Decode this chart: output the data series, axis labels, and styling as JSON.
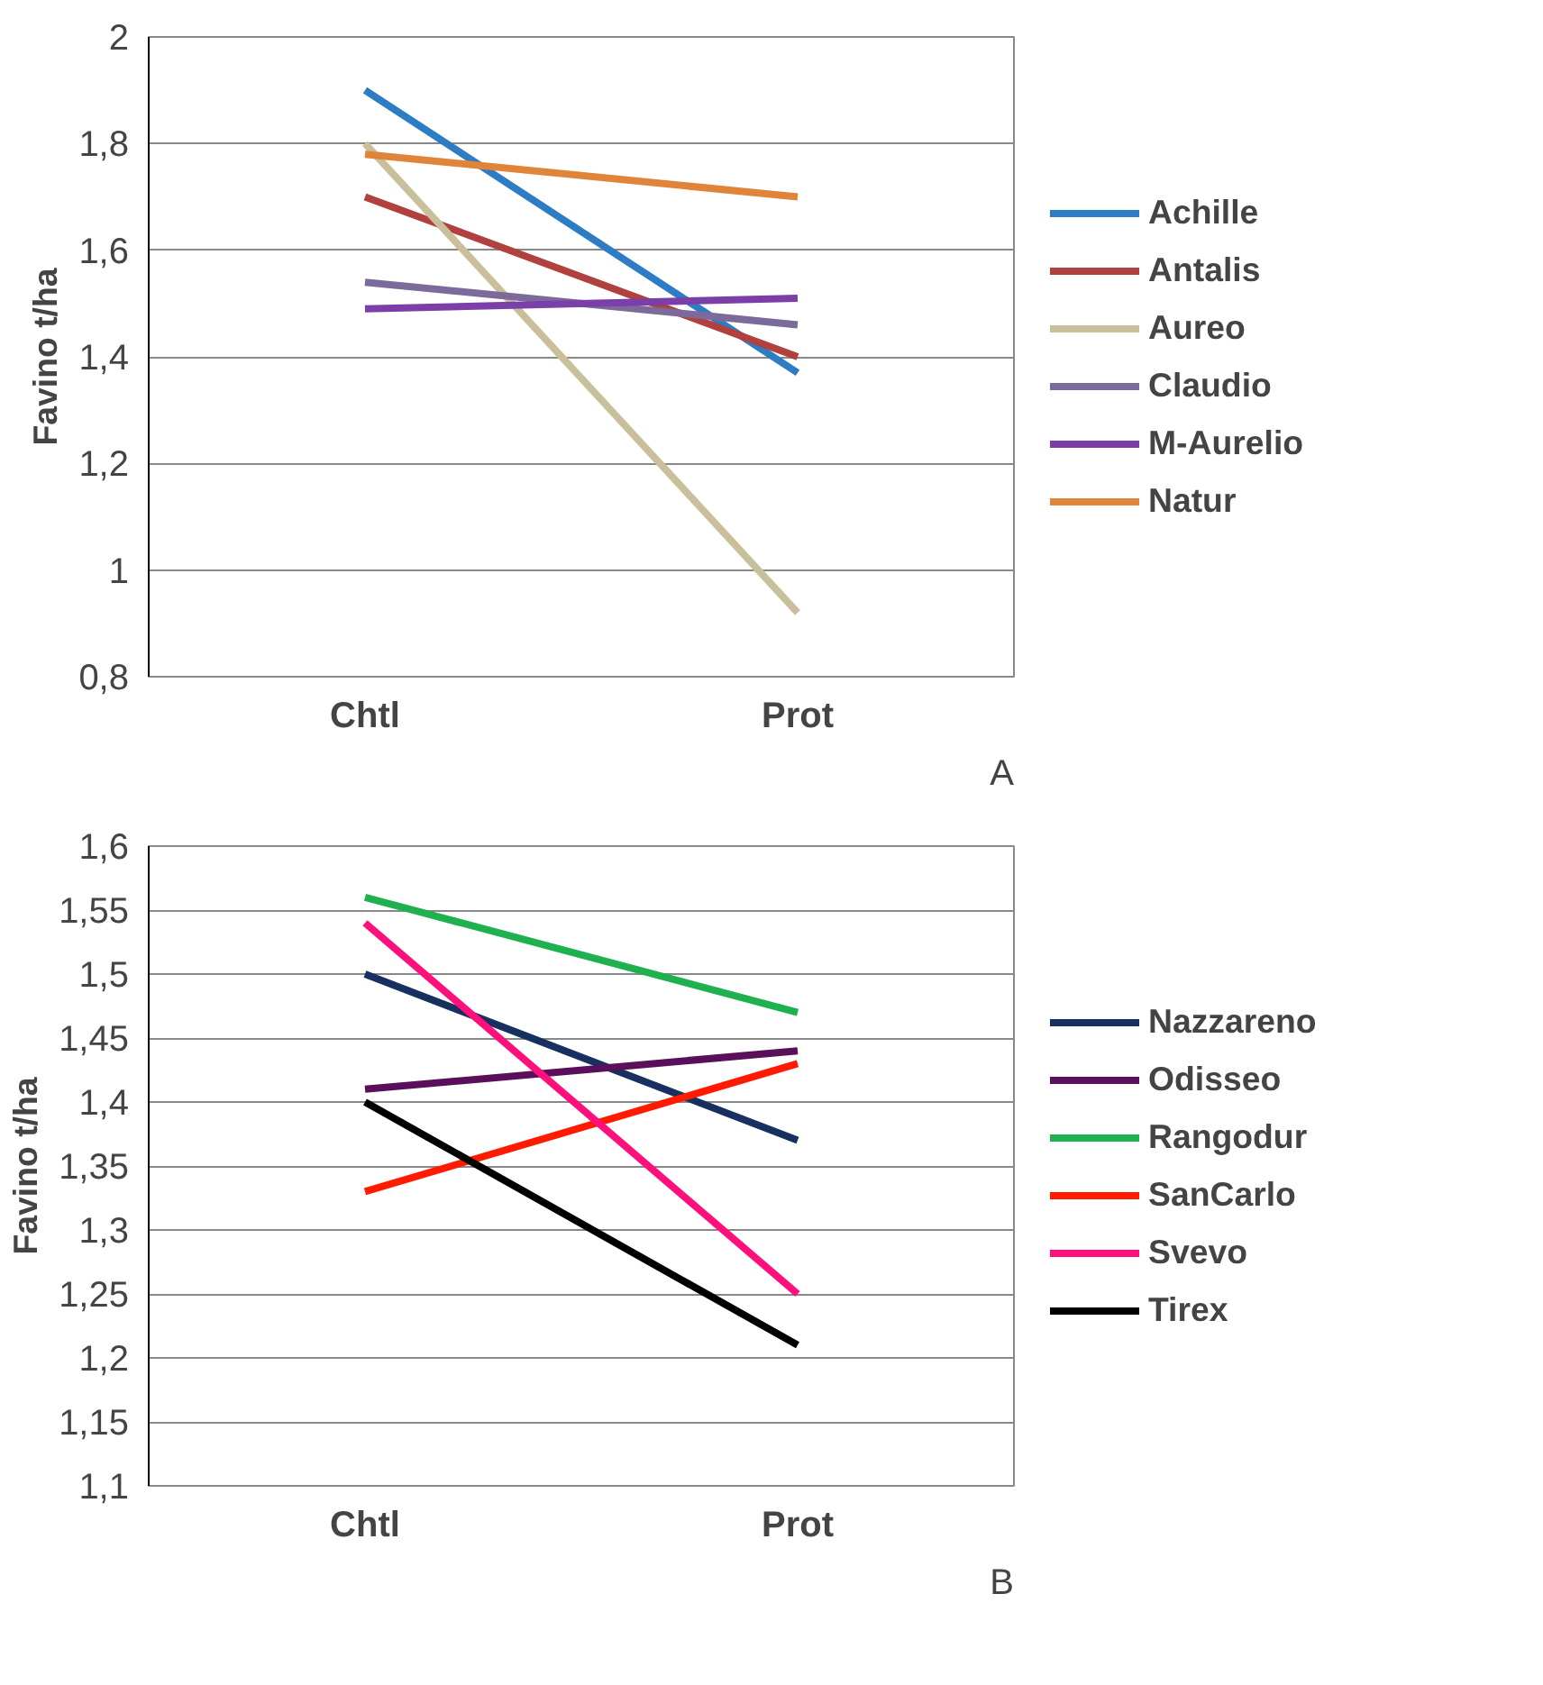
{
  "chart_data": [
    {
      "type": "line",
      "ylabel": "Favino t/ha",
      "categories": [
        "Chtl",
        "Prot"
      ],
      "ylim": [
        0.8,
        2
      ],
      "yticks": [
        {
          "value": 0.8,
          "label": "0,8"
        },
        1,
        {
          "value": 1.2,
          "label": "1,2"
        },
        {
          "value": 1.4,
          "label": "1,4"
        },
        {
          "value": 1.6,
          "label": "1,6"
        },
        {
          "value": 1.8,
          "label": "1,8"
        },
        2
      ],
      "grid": "y",
      "legend": "right",
      "marker": "none",
      "line_style": "solid",
      "annotations": [
        "A"
      ],
      "series": [
        {
          "name": "Achille",
          "color": "#2e7cc4",
          "values": [
            1.9,
            1.37
          ]
        },
        {
          "name": "Antalis",
          "color": "#b0413e",
          "values": [
            1.7,
            1.4
          ]
        },
        {
          "name": "Aureo",
          "color": "#c9c09b",
          "values": [
            1.8,
            0.92
          ]
        },
        {
          "name": "Claudio",
          "color": "#7b6a9a",
          "values": [
            1.54,
            1.46
          ]
        },
        {
          "name": "M-Aurelio",
          "color": "#7a3fa8",
          "values": [
            1.49,
            1.51
          ]
        },
        {
          "name": "Natur",
          "color": "#e0843a",
          "values": [
            1.78,
            1.7
          ]
        }
      ]
    },
    {
      "type": "line",
      "ylabel": "Favino t/ha",
      "categories": [
        "Chtl",
        "Prot"
      ],
      "ylim": [
        1.1,
        1.6
      ],
      "yticks": [
        {
          "value": 1.1,
          "label": "1,1"
        },
        {
          "value": 1.15,
          "label": "1,15"
        },
        {
          "value": 1.2,
          "label": "1,2"
        },
        {
          "value": 1.25,
          "label": "1,25"
        },
        {
          "value": 1.3,
          "label": "1,3"
        },
        {
          "value": 1.35,
          "label": "1,35"
        },
        {
          "value": 1.4,
          "label": "1,4"
        },
        {
          "value": 1.45,
          "label": "1,45"
        },
        {
          "value": 1.5,
          "label": "1,5"
        },
        {
          "value": 1.55,
          "label": "1,55"
        },
        {
          "value": 1.6,
          "label": "1,6"
        }
      ],
      "grid": "y",
      "legend": "right",
      "marker": "none",
      "line_style": "solid",
      "annotations": [
        "B"
      ],
      "series": [
        {
          "name": "Nazzareno",
          "color": "#17305f",
          "values": [
            1.5,
            1.37
          ]
        },
        {
          "name": "Odisseo",
          "color": "#5a0f5a",
          "values": [
            1.41,
            1.44
          ]
        },
        {
          "name": "Rangodur",
          "color": "#1fb050",
          "values": [
            1.56,
            1.47
          ]
        },
        {
          "name": "SanCarlo",
          "color": "#ff1a00",
          "values": [
            1.33,
            1.43
          ]
        },
        {
          "name": "Svevo",
          "color": "#ff0f7b",
          "values": [
            1.54,
            1.25
          ]
        },
        {
          "name": "Tirex",
          "color": "#000000",
          "values": [
            1.4,
            1.21
          ]
        }
      ]
    }
  ]
}
